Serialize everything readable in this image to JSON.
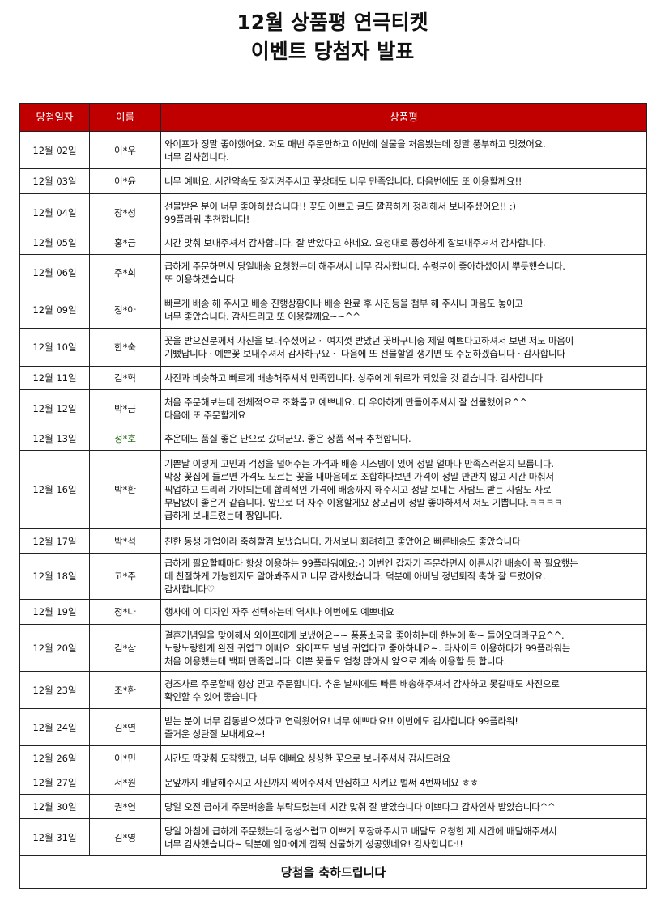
{
  "title": {
    "line1": "12월 상품평 연극티켓",
    "line2": "이벤트 당첨자  발표"
  },
  "colors": {
    "header_bg": "#c00000",
    "header_text": "#ffffff"
  },
  "table": {
    "headers": [
      "당첨일자",
      "이름",
      "상품평"
    ],
    "rows": [
      {
        "date": "12월 02일",
        "name": "이*우",
        "review": [
          "와이프가 정말 좋아했어요. 저도 매번 주문만하고 이번에 실물을 처음봤는데 정말 풍부하고 멋졌어요.",
          "너무 감사합니다."
        ]
      },
      {
        "date": "12월 03일",
        "name": "이*윤",
        "review": [
          "너무 예뻐요. 시간약속도 잘지켜주시고 꽃상태도 너무 만족입니다. 다음번에도 또 이용할께요!!"
        ]
      },
      {
        "date": "12월 04일",
        "name": "장*성",
        "review": [
          "선물받은 분이 너무 좋아하셨습니다!! 꽃도 이쁘고 글도 깔끔하게 정리해서 보내주셨어요!! :)",
          "99플라워 추천합니다!"
        ]
      },
      {
        "date": "12월 05일",
        "name": "홍*금",
        "review": [
          "시간 맞춰 보내주셔서 감사합니다. 잘 받았다고 하네요. 요청대로 풍성하게 잘보내주셔서 감사합니다."
        ]
      },
      {
        "date": "12월 06일",
        "name": "주*희",
        "review": [
          "급하게 주문하면서 당일배송 요청했는데 해주셔서 너무 감사합니다. 수령분이 좋아하셨어서 뿌듯했습니다.",
          "또 이용하겠습니다"
        ]
      },
      {
        "date": "12월 09일",
        "name": "정*아",
        "review": [
          "빠르게 배송 해 주시고 배송 진행상황이나 배송 완료 후 사진등을 첨부 해 주시니 마음도 놓이고",
          "너무 좋았습니다. 감사드리고 또 이용할께요~~^^"
        ]
      },
      {
        "date": "12월 10일",
        "name": "한*숙",
        "review": [
          "꽃을 받으신분께서 사진을 보내주셨어요ㆍ 여지껏 받았던 꽃바구니중 제일 예쁘다고하셔서 보낸 저도 마음이",
          "기뻤답니다ㆍ예쁜꽃 보내주셔서 감사하구요ㆍ 다음에 또 선물할일 생기면 또 주문하겠습니다ㆍ감사합니다"
        ]
      },
      {
        "date": "12월 11일",
        "name": "김*혁",
        "review": [
          "사진과 비슷하고 빠르게 배송해주셔서 만족합니다. 상주에게 위로가 되었을 것 같습니다. 감사합니다"
        ]
      },
      {
        "date": "12월 12일",
        "name": "박*금",
        "review": [
          "처음 주문해보는데 전체적으로 조화롭고 예쁘네요. 더 우아하게 만들어주셔서 잘 선물했어요^^",
          "다음에 또 주문할게요"
        ]
      },
      {
        "date": "12월 13일",
        "name": "정*호",
        "name_color": "green",
        "review": [
          "추운데도 품질 좋은 난으로 갔더군요.  좋은 상품 적극 추천합니다."
        ]
      },
      {
        "date": "12월 16일",
        "name": "박*환",
        "review": [
          "기쁜날 이렇게 고민과 걱정을 덜어주는 가격과 배송 시스템이 있어 정말 얼마나 만족스러운지 모릅니다.",
          "막상 꽃집에 들르면 가격도 모르는 꽃을 내마음데로 조합하다보면 가격이 정말 만만치 않고 시간 마춰서",
          "픽업하고 드리러 가야되는데 합리적인 가격에 배송까지 해주시고 정말 보내는 사람도 받는 사람도 사로",
          "부담없이 좋은거 같습니다. 앞으로 더 자주 이용할게요 장모님이 정말 좋아하셔서 저도 기쁩니다.ㅋㅋㅋㅋ",
          "급하게 보내드렸는데 짱입니다."
        ]
      },
      {
        "date": "12월 17일",
        "name": "박*석",
        "review": [
          "친한 동생 개업이라 축하할겸 보냈습니다. 가서보니 화려하고 좋았어요 빠른배송도 좋았습니다"
        ]
      },
      {
        "date": "12월 18일",
        "name": "고*주",
        "review": [
          "급하게 필요할때마다 항상 이용하는 99플라워에요:-) 이번엔 갑자기 주문하면서 이른시간 배송이 꼭 필요했는",
          "데 친절하게 가능한지도 알아봐주시고 너무 감사했습니다. 덕분에 아버님 정년퇴직 축하 잘 드렸어요.",
          "감사합니다♡"
        ]
      },
      {
        "date": "12월 19일",
        "name": "정*나",
        "review": [
          "행사에 이 디자인 자주 선택하는데 역시나 이번에도 예쁘네요"
        ]
      },
      {
        "date": "12월 20일",
        "name": "김*삼",
        "review": [
          "결혼기념일을 맞이해서 와이프에게 보냈어요~~ 퐁퐁소국을 좋아하는데 한눈에 확~ 들어오더라구요^^.",
          "노랑노랑한게 완전 귀엽고 이뻐요. 와이프도 넘넘 귀엽다고 좋아하네요~. 타사이트 이용하다가 99플라워는",
          "처음 이용했는데 백퍼 만족입니다. 이쁜 꽃들도 엄청 많아서 앞으로 계속 이용할 듯 합니다."
        ]
      },
      {
        "date": "12월 23일",
        "name": "조*환",
        "review": [
          "경조사로 주문할때 항상 믿고 주문합니다. 추운 날씨에도 빠른 배송해주셔서 감사하고 못갈때도 사진으로",
          "확인할 수 있어 좋습니다"
        ]
      },
      {
        "date": "12월 24일",
        "name": "김*연",
        "review": [
          "받는 분이 너무 감동받으셨다고 연락왔어요! 너무 예쁘대요!! 이번에도 감사합니다 99플라워!",
          "즐거운 성탄절 보내세요~!"
        ]
      },
      {
        "date": "12월 26일",
        "name": "이*민",
        "review": [
          "시간도 딱맞춰 도착했고, 너무 예뻐요 싱싱한 꽃으로 보내주셔서 감사드려요"
        ]
      },
      {
        "date": "12월 27일",
        "name": "서*원",
        "review": [
          "문앞까지 배달해주시고 사진까지 찍어주셔서 안심하고 시켜요 벌써 4번째네요 ㅎㅎ"
        ]
      },
      {
        "date": "12월 30일",
        "name": "권*연",
        "review": [
          "당일 오전 급하게 주문배송을 부탁드렸는데 시간 맞춰 잘 받았습니다 이쁘다고 감사인사 받았습니다^^"
        ]
      },
      {
        "date": "12월 31일",
        "name": "김*영",
        "review": [
          "당일 아침에 급하게 주문했는데 정성스럽고 이쁘게 포장해주시고 배달도 요청한 제 시간에 배달해주셔서",
          "너무 감사했습니다~ 덕분에 엄마에게 깜짝 선물하기 성공했네요! 감사합니다!!"
        ]
      }
    ],
    "footer": "당첨을 축하드립니다"
  }
}
